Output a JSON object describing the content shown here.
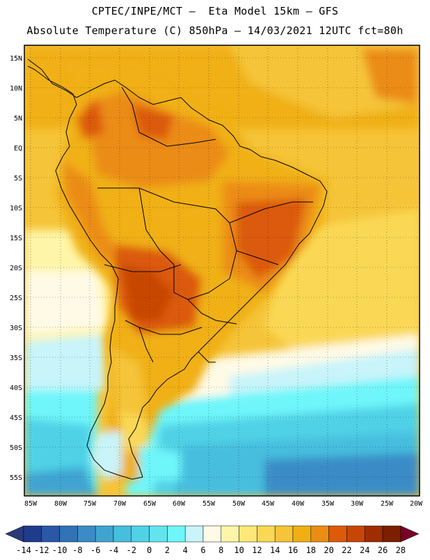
{
  "header": {
    "line1": "CPTEC/INPE/MCT –  Eta Model 15km – GFS",
    "line2": "Absolute Temperature (C) 850hPa – 14/03/2021 12UTC fct=80h"
  },
  "map": {
    "lon_labels": [
      "85W",
      "80W",
      "75W",
      "70W",
      "65W",
      "60W",
      "55W",
      "50W",
      "45W",
      "40W",
      "35W",
      "30W",
      "25W",
      "20W"
    ],
    "lat_labels": [
      "15N",
      "10N",
      "5N",
      "EQ",
      "5S",
      "10S",
      "15S",
      "20S",
      "25S",
      "30S",
      "35S",
      "40S",
      "45S",
      "50S",
      "55S"
    ]
  },
  "legend": {
    "labels": [
      "-14",
      "-12",
      "-10",
      "-8",
      "-6",
      "-4",
      "-2",
      "0",
      "2",
      "4",
      "6",
      "8",
      "10",
      "12",
      "14",
      "16",
      "18",
      "20",
      "22",
      "24",
      "26",
      "28"
    ],
    "colors": [
      "#1e3c8c",
      "#2a58a6",
      "#3272b6",
      "#3a8cc6",
      "#40a4d2",
      "#46bede",
      "#50d2e6",
      "#62e4ee",
      "#6ef6fa",
      "#c8f4fa",
      "#fffae6",
      "#fff5a8",
      "#ffe878",
      "#fad855",
      "#f5c438",
      "#f0b014",
      "#eb8c14",
      "#dc5a0a",
      "#c84605",
      "#a02d00",
      "#7c1e00"
    ],
    "low_arrow_color": "#2a3a78",
    "high_arrow_color": "#780028"
  }
}
